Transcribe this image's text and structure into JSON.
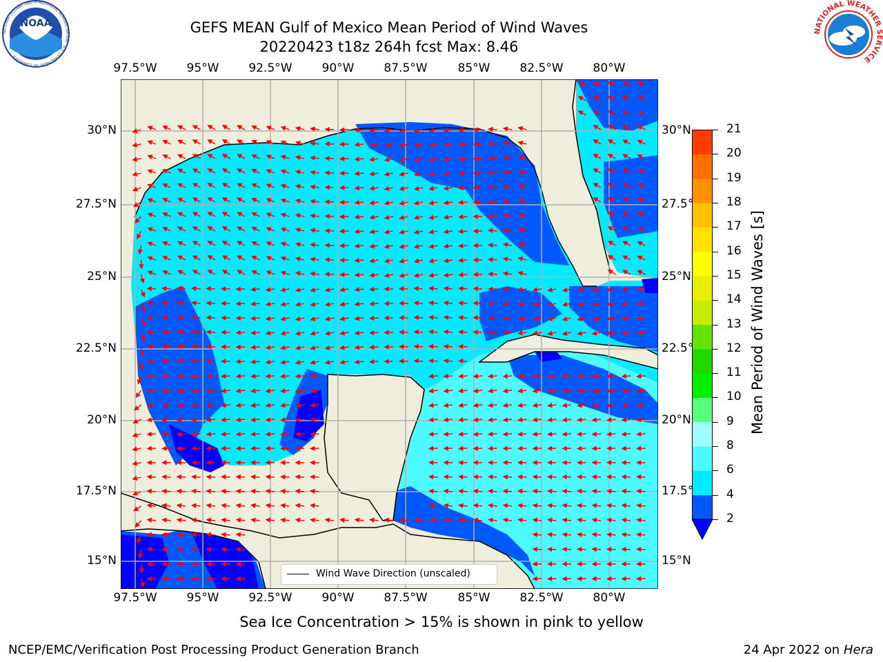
{
  "header": {
    "title_line1": "GEFS MEAN Gulf of Mexico Mean Period of Wind Waves",
    "title_line2": "20220423 t18z 264h fcst   Max: 8.46"
  },
  "logos": {
    "left": {
      "name": "noaa-logo",
      "text": "NOAA",
      "ring_text": "NATIONAL OCEANIC AND ATMOSPHERIC ADMINISTRATION · U.S. DEPARTMENT OF COMMERCE"
    },
    "right": {
      "name": "nws-logo",
      "ring_text": "NATIONAL WEATHER SERVICE"
    }
  },
  "map": {
    "lon_labels": [
      "97.5°W",
      "95°W",
      "92.5°W",
      "90°W",
      "87.5°W",
      "85°W",
      "82.5°W",
      "80°W"
    ],
    "lat_labels": [
      "30°N",
      "27.5°N",
      "25°N",
      "22.5°N",
      "20°N",
      "17.5°N",
      "15°N"
    ],
    "legend_text": "Wind Wave Direction (unscaled)",
    "colors": {
      "land": "#efeddc",
      "grid": "#b0b0b0",
      "arrow": "#ff0000"
    }
  },
  "colorbar": {
    "label": "Mean Period of Wind Waves [s]",
    "ticks": [
      "2",
      "4",
      "6",
      "8",
      "9",
      "10",
      "11",
      "12",
      "13",
      "14",
      "15",
      "16",
      "17",
      "18",
      "19",
      "20",
      "21"
    ],
    "colors": [
      "#0058ff",
      "#00ebff",
      "#4dfaff",
      "#a0fdff",
      "#57ff7c",
      "#00f000",
      "#24d600",
      "#64e200",
      "#c8ec00",
      "#e6f000",
      "#ffff00",
      "#ffe100",
      "#ffc000",
      "#ff9000",
      "#ff6e00",
      "#ff3c00",
      "#ff0000"
    ],
    "under_color": "#0000ff"
  },
  "footer": {
    "caption": "Sea Ice Concentration > 15% is shown in pink to yellow",
    "org": "NCEP/EMC/Verification Post Processing Product Generation Branch",
    "date": "24 Apr 2022 on",
    "host": "Hera"
  }
}
